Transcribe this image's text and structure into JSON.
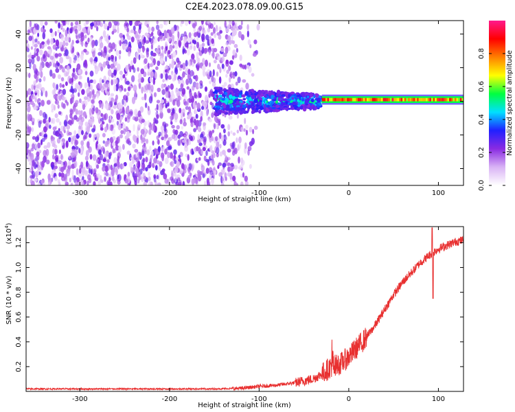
{
  "page_title": "C2E4.2023.078.09.00.G15",
  "chart_data": [
    {
      "id": "spectrogram",
      "type": "heatmap",
      "xlabel": "Height of straight line (km)",
      "ylabel": "Frequency (Hz)",
      "xlim": [
        -360,
        128
      ],
      "ylim": [
        -50,
        48
      ],
      "xticks": [
        -300,
        -200,
        -100,
        0,
        100
      ],
      "yticks": [
        -40,
        -20,
        0,
        20,
        40
      ],
      "grid": false,
      "colorbar": {
        "label": "Normalized spectral amplitude",
        "range": [
          0,
          1
        ],
        "ticks": [
          0.0,
          0.2,
          0.4,
          0.6,
          0.8
        ],
        "tick_labels": [
          "0.0",
          "0.2",
          "0.4",
          "0.6",
          "0.8"
        ],
        "colormap": [
          "#ffffff",
          "#d9b3f5",
          "#8a2be2",
          "#2020ff",
          "#00e0ff",
          "#00ff40",
          "#ffff00",
          "#ff8000",
          "#ff0000",
          "#ff1a8c"
        ]
      },
      "regions": [
        {
          "description": "diffuse noise",
          "x_range": [
            -360,
            -110
          ],
          "y_range": [
            -50,
            48
          ],
          "amplitude": 0.15
        },
        {
          "description": "signal onset",
          "x_range": [
            -150,
            -30
          ],
          "y_range": [
            -8,
            8
          ],
          "amplitude": 0.4
        },
        {
          "description": "carrier line",
          "x_range": [
            -30,
            128
          ],
          "y_range": [
            -1,
            3
          ],
          "amplitude": 0.85
        }
      ]
    },
    {
      "id": "snr",
      "type": "line",
      "xlabel": "Height of straight line (km)",
      "ylabel": "SNR (10 * v/v)",
      "yscale_label": "(x10",
      "yscale_exp": "4",
      "yscale_close": ")",
      "xlim": [
        -360,
        128
      ],
      "ylim": [
        0,
        1.33
      ],
      "xticks": [
        -300,
        -200,
        -100,
        0,
        100
      ],
      "yticks": [
        0.2,
        0.4,
        0.6,
        0.8,
        1.0,
        1.2
      ],
      "ytick_labels": [
        "0.2",
        "0.4",
        "0.6",
        "0.8",
        "1.0",
        "1.2"
      ],
      "grid": false,
      "series_color": "#e83030",
      "trend": {
        "x": [
          -360,
          -200,
          -150,
          -120,
          -100,
          -80,
          -60,
          -40,
          -30,
          -20,
          -10,
          0,
          10,
          20,
          30,
          40,
          50,
          60,
          70,
          80,
          90,
          100,
          110,
          120,
          128
        ],
        "y": [
          0.02,
          0.02,
          0.02,
          0.025,
          0.04,
          0.05,
          0.07,
          0.1,
          0.14,
          0.2,
          0.22,
          0.28,
          0.36,
          0.44,
          0.54,
          0.66,
          0.78,
          0.88,
          0.96,
          1.04,
          1.1,
          1.15,
          1.18,
          1.21,
          1.22
        ]
      },
      "features": [
        {
          "x": 93,
          "y": 1.32,
          "note": "spike"
        },
        {
          "x": 94,
          "y": 0.75,
          "note": "dip"
        }
      ]
    }
  ]
}
